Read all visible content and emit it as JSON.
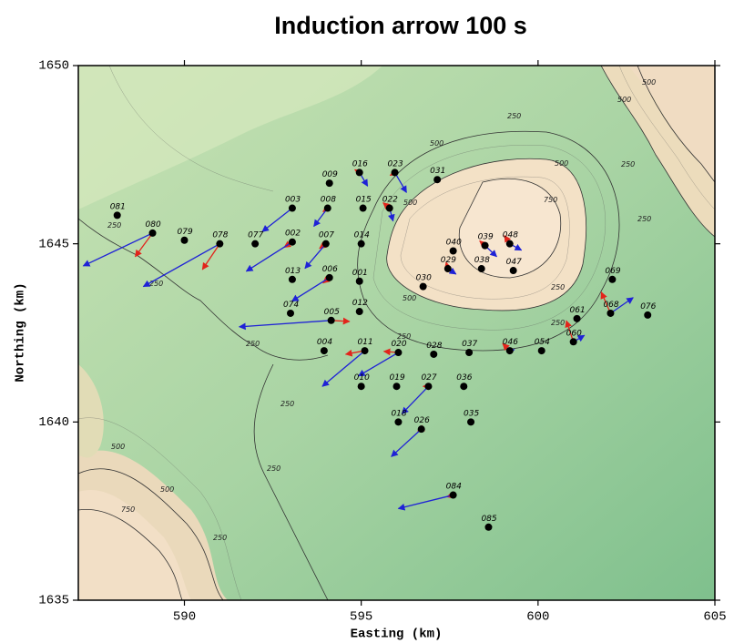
{
  "chart_data": {
    "type": "arrow-map",
    "title": "Induction arrow 100 s",
    "xlabel": "Easting (km)",
    "ylabel": "Northing (km)",
    "xlim": [
      587,
      605
    ],
    "xticks": [
      590,
      595,
      600,
      605
    ],
    "ylim": [
      1635,
      1650
    ],
    "yticks": [
      1635,
      1640,
      1645,
      1650
    ],
    "real_color": "#1f22d6",
    "imag_color": "#e2241b",
    "station_color": "#000000",
    "contour_labels": [
      "250",
      "500",
      "250",
      "250",
      "500",
      "250",
      "250",
      "750",
      "500",
      "500",
      "250",
      "250",
      "250",
      "500",
      "750",
      "500",
      "250",
      "250",
      "250",
      "500",
      "250",
      "500"
    ],
    "stations": [
      {
        "label": "081",
        "x": 588.1,
        "y": 1645.8
      },
      {
        "label": "080",
        "x": 589.1,
        "y": 1645.3,
        "real": [
          -1.96,
          -0.92
        ],
        "imag": [
          -0.49,
          -0.66
        ]
      },
      {
        "label": "079",
        "x": 590.0,
        "y": 1645.1
      },
      {
        "label": "078",
        "x": 591.0,
        "y": 1645.0,
        "real": [
          -2.16,
          -1.2
        ],
        "imag": [
          -0.49,
          -0.72
        ]
      },
      {
        "label": "077",
        "x": 592.0,
        "y": 1645.0
      },
      {
        "label": "003",
        "x": 593.05,
        "y": 1646.0,
        "real": [
          -0.85,
          -0.66
        ]
      },
      {
        "label": "002",
        "x": 593.05,
        "y": 1645.05,
        "real": [
          -1.3,
          -0.82
        ],
        "imag": [
          -0.23,
          -0.15
        ]
      },
      {
        "label": "008",
        "x": 594.05,
        "y": 1646.0,
        "real": [
          -0.39,
          -0.51
        ],
        "imag": [
          -0.13,
          -0.1
        ]
      },
      {
        "label": "007",
        "x": 594.0,
        "y": 1645.0,
        "real": [
          -0.59,
          -0.69
        ],
        "imag": [
          -0.18,
          -0.13
        ]
      },
      {
        "label": "009",
        "x": 594.1,
        "y": 1646.7
      },
      {
        "label": "016",
        "x": 594.95,
        "y": 1647.0,
        "real": [
          0.23,
          -0.38
        ],
        "imag": [
          -0.13,
          0.08
        ]
      },
      {
        "label": "015",
        "x": 595.05,
        "y": 1646.0
      },
      {
        "label": "014",
        "x": 595.0,
        "y": 1645.0
      },
      {
        "label": "023",
        "x": 595.95,
        "y": 1647.0,
        "real": [
          0.33,
          -0.56
        ],
        "imag": [
          -0.13,
          -0.08
        ]
      },
      {
        "label": "022",
        "x": 595.8,
        "y": 1646.0,
        "real": [
          0.1,
          -0.36
        ],
        "imag": [
          -0.18,
          0.15
        ]
      },
      {
        "label": "031",
        "x": 597.15,
        "y": 1646.8
      },
      {
        "label": "013",
        "x": 593.05,
        "y": 1644.0
      },
      {
        "label": "006",
        "x": 594.1,
        "y": 1644.05,
        "real": [
          -1.06,
          -0.66
        ],
        "imag": [
          -0.18,
          -0.15
        ]
      },
      {
        "label": "001",
        "x": 594.95,
        "y": 1643.95
      },
      {
        "label": "074",
        "x": 593.0,
        "y": 1643.05
      },
      {
        "label": "005",
        "x": 594.15,
        "y": 1642.85,
        "real": [
          -2.6,
          -0.18
        ],
        "imag": [
          0.52,
          -0.03
        ]
      },
      {
        "label": "012",
        "x": 594.95,
        "y": 1643.1
      },
      {
        "label": "040",
        "x": 597.6,
        "y": 1644.8
      },
      {
        "label": "039",
        "x": 598.5,
        "y": 1644.95,
        "real": [
          0.33,
          -0.31
        ],
        "imag": [
          -0.15,
          0.13
        ]
      },
      {
        "label": "048",
        "x": 599.2,
        "y": 1645.0,
        "real": [
          0.33,
          -0.18
        ],
        "imag": [
          -0.15,
          0.23
        ]
      },
      {
        "label": "029",
        "x": 597.45,
        "y": 1644.3,
        "real": [
          0.23,
          -0.15
        ],
        "imag": [
          -0.05,
          0.18
        ]
      },
      {
        "label": "038",
        "x": 598.4,
        "y": 1644.3
      },
      {
        "label": "047",
        "x": 599.3,
        "y": 1644.25
      },
      {
        "label": "030",
        "x": 596.75,
        "y": 1643.8
      },
      {
        "label": "069",
        "x": 602.1,
        "y": 1644.0
      },
      {
        "label": "061",
        "x": 601.1,
        "y": 1642.9
      },
      {
        "label": "068",
        "x": 602.05,
        "y": 1643.05,
        "real": [
          0.64,
          0.44
        ],
        "imag": [
          -0.26,
          0.59
        ]
      },
      {
        "label": "076",
        "x": 603.1,
        "y": 1643.0
      },
      {
        "label": "004",
        "x": 593.95,
        "y": 1642.0
      },
      {
        "label": "011",
        "x": 595.1,
        "y": 1642.0,
        "real": [
          -1.2,
          -1.0
        ],
        "imag": [
          -0.54,
          -0.1
        ]
      },
      {
        "label": "020",
        "x": 596.05,
        "y": 1641.95,
        "real": [
          -1.13,
          -0.66
        ],
        "imag": [
          -0.41,
          0.03
        ]
      },
      {
        "label": "028",
        "x": 597.05,
        "y": 1641.9
      },
      {
        "label": "037",
        "x": 598.05,
        "y": 1641.95
      },
      {
        "label": "046",
        "x": 599.2,
        "y": 1642.0,
        "real": [
          0.13,
          0.03
        ],
        "imag": [
          -0.2,
          0.2
        ]
      },
      {
        "label": "054",
        "x": 600.1,
        "y": 1642.0
      },
      {
        "label": "060",
        "x": 601.0,
        "y": 1642.25,
        "real": [
          0.31,
          0.18
        ],
        "imag": [
          -0.2,
          0.59
        ]
      },
      {
        "label": "010",
        "x": 595.0,
        "y": 1641.0
      },
      {
        "label": "019",
        "x": 596.0,
        "y": 1641.0
      },
      {
        "label": "027",
        "x": 596.9,
        "y": 1641.0,
        "real": [
          -0.75,
          -0.77
        ],
        "imag": [
          -0.15,
          0.0
        ]
      },
      {
        "label": "036",
        "x": 597.9,
        "y": 1641.0
      },
      {
        "label": "018",
        "x": 596.05,
        "y": 1640.0
      },
      {
        "label": "026",
        "x": 596.7,
        "y": 1639.8,
        "real": [
          -0.85,
          -0.77
        ],
        "imag": [
          -0.1,
          -0.05
        ]
      },
      {
        "label": "035",
        "x": 598.1,
        "y": 1640.0
      },
      {
        "label": "084",
        "x": 597.6,
        "y": 1637.95,
        "real": [
          -1.55,
          -0.38
        ],
        "imag": [
          -0.18,
          -0.05
        ]
      },
      {
        "label": "085",
        "x": 598.6,
        "y": 1637.05
      }
    ]
  }
}
